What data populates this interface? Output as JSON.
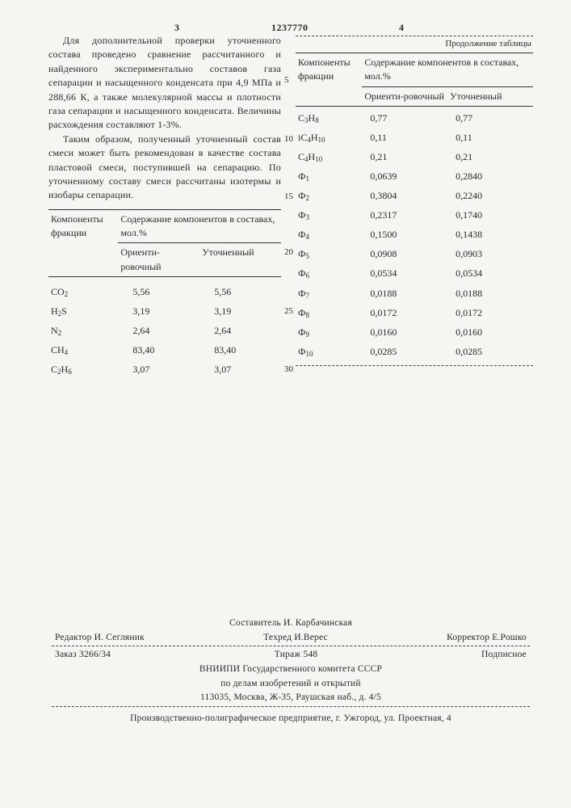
{
  "doc_number": "1237770",
  "page_left": "3",
  "page_right": "4",
  "para1": "Для дополнительной проверки уточненного состава проведено сравнение рассчитанного и найденного экспериментально составов газа сепарации и насыщенного конденсата при 4,9 МПа и 288,66 К, а также молекулярной массы и плотности газа сепарации и насыщенного конденсата. Величины расхождения составляют 1-3%.",
  "para2": "Таким образом, полученный уточненный состав смеси может быть рекомендован в качестве состава пластовой смеси, поступившей на сепарацию. По уточненному составу смеси рассчитаны изотермы и изобары сепарации.",
  "table_header_comp": "Компоненты фракции",
  "table_header_content": "Содержание компонентов в составах, мол.%",
  "col_orient": "Ориенти-ровочный",
  "col_refined": "Уточненный",
  "continuation": "Продолжение таблицы",
  "left_rows": [
    {
      "c": "CO₂",
      "a": "5,56",
      "b": "5,56"
    },
    {
      "c": "H₂S",
      "a": "3,19",
      "b": "3,19"
    },
    {
      "c": "N₂",
      "a": "2,64",
      "b": "2,64"
    },
    {
      "c": "CH₄",
      "a": "83,40",
      "b": "83,40"
    },
    {
      "c": "C₂H₆",
      "a": "3,07",
      "b": "3,07"
    }
  ],
  "right_rows": [
    {
      "c": "C₃H₈",
      "a": "0,77",
      "b": "0,77"
    },
    {
      "c": "iC₄H₁₀",
      "a": "0,11",
      "b": "0,11"
    },
    {
      "c": "C₄H₁₀",
      "a": "0,21",
      "b": "0,21"
    },
    {
      "c": "Ф₁",
      "a": "0,0639",
      "b": "0,2840"
    },
    {
      "c": "Ф₂",
      "a": "0,3804",
      "b": "0,2240"
    },
    {
      "c": "Ф₃",
      "a": "0,2317",
      "b": "0,1740"
    },
    {
      "c": "Ф₄",
      "a": "0,1500",
      "b": "0,1438"
    },
    {
      "c": "Ф₅",
      "a": "0,0908",
      "b": "0,0903"
    },
    {
      "c": "Ф₆",
      "a": "0,0534",
      "b": "0,0534"
    },
    {
      "c": "Ф₇",
      "a": "0,0188",
      "b": "0,0188"
    },
    {
      "c": "Ф₈",
      "a": "0,0172",
      "b": "0,0172"
    },
    {
      "c": "Ф₉",
      "a": "0,0160",
      "b": "0,0160"
    },
    {
      "c": "Ф₁₀",
      "a": "0,0285",
      "b": "0,0285"
    }
  ],
  "line_numbers": [
    "5",
    "10",
    "15",
    "20",
    "25",
    "30"
  ],
  "footer": {
    "compiler": "Составитель И. Карбачинская",
    "editor": "Редактор И. Сегляник",
    "tech": "Техред И.Верес",
    "corrector": "Корректор Е.Рошко",
    "order": "Заказ 3266/34",
    "tirazh": "Тираж 548",
    "podpis": "Подписное",
    "org1": "ВНИИПИ Государственного комитета СССР",
    "org2": "по делам изобретений и открытий",
    "addr": "113035, Москва, Ж-35, Раушская наб., д. 4/5",
    "print": "Производственно-полиграфическое предприятие, г. Ужгород, ул. Проектная, 4"
  }
}
